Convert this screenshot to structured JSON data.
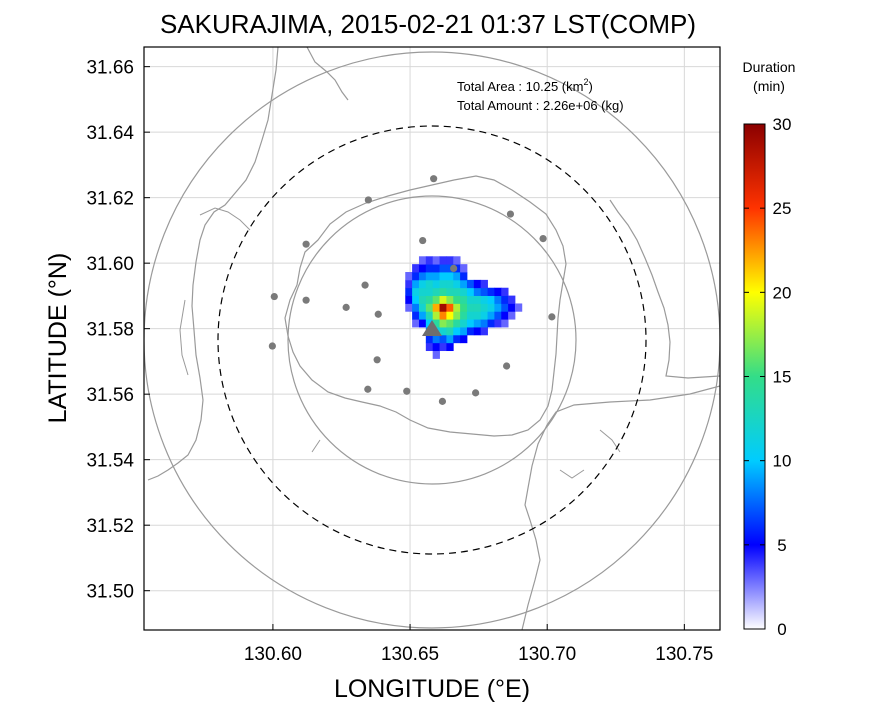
{
  "chart_data": {
    "type": "heatmap",
    "title": "SAKURAJIMA, 2015-02-21 01:37 LST(COMP)",
    "xlabel": "LONGITUDE (°E)",
    "ylabel": "LATITUDE (°N)",
    "xlim": [
      130.553,
      130.763
    ],
    "ylim": [
      31.488,
      31.666
    ],
    "xticks": [
      "130.60",
      "130.65",
      "130.70",
      "130.75"
    ],
    "xtick_values": [
      130.6,
      130.65,
      130.7,
      130.75
    ],
    "yticks": [
      "31.50",
      "31.52",
      "31.54",
      "31.56",
      "31.58",
      "31.60",
      "31.62",
      "31.64",
      "31.66"
    ],
    "ytick_values": [
      31.5,
      31.52,
      31.54,
      31.56,
      31.58,
      31.6,
      31.62,
      31.64,
      31.66
    ],
    "grid": true,
    "annotation": {
      "area_label": "Total Area   : 10.25 (km",
      "area_sup": "2",
      "area_close": ")",
      "amount_label": "Total Amount : 2.26e+06 (kg)"
    },
    "colorbar": {
      "title_line1": "Duration",
      "title_line2": "(min)",
      "ticks": [
        "0",
        "5",
        "10",
        "15",
        "20",
        "25",
        "30"
      ],
      "tick_values": [
        0,
        5,
        10,
        15,
        20,
        25,
        30
      ],
      "range": [
        0,
        30
      ]
    },
    "center": {
      "lon": 130.658,
      "lat": 31.578
    },
    "range_circles": [
      {
        "radius_km": 5,
        "style": "solid"
      },
      {
        "radius_km": 7.5,
        "style": "dashed"
      },
      {
        "radius_km": 10,
        "style": "solid"
      }
    ],
    "radar_sites": [
      [
        130.6586,
        31.6258
      ],
      [
        130.6348,
        31.6193
      ],
      [
        130.6866,
        31.615
      ],
      [
        130.6985,
        31.6075
      ],
      [
        130.6121,
        31.6058
      ],
      [
        130.6546,
        31.6069
      ],
      [
        130.6659,
        31.5984
      ],
      [
        130.6005,
        31.5898
      ],
      [
        130.6121,
        31.5887
      ],
      [
        130.6336,
        31.5933
      ],
      [
        130.6267,
        31.5865
      ],
      [
        130.6384,
        31.5844
      ],
      [
        130.7017,
        31.5836
      ],
      [
        130.5998,
        31.5747
      ],
      [
        130.638,
        31.5705
      ],
      [
        130.6852,
        31.5686
      ],
      [
        130.6346,
        31.5615
      ],
      [
        130.6488,
        31.5609
      ],
      [
        130.6739,
        31.5604
      ],
      [
        130.6618,
        31.5578
      ]
    ],
    "duration_cells": [
      [
        130.6495,
        31.5865,
        3
      ],
      [
        130.6495,
        31.5889,
        5
      ],
      [
        130.6495,
        31.5913,
        6
      ],
      [
        130.6495,
        31.5937,
        4
      ],
      [
        130.6495,
        31.5961,
        3
      ],
      [
        130.652,
        31.5817,
        3
      ],
      [
        130.652,
        31.5841,
        6
      ],
      [
        130.652,
        31.5865,
        8
      ],
      [
        130.652,
        31.5889,
        10
      ],
      [
        130.652,
        31.5913,
        11
      ],
      [
        130.652,
        31.5937,
        9
      ],
      [
        130.652,
        31.5961,
        6
      ],
      [
        130.652,
        31.5985,
        4
      ],
      [
        130.6545,
        31.5817,
        5
      ],
      [
        130.6545,
        31.5841,
        9
      ],
      [
        130.6545,
        31.5865,
        12
      ],
      [
        130.6545,
        31.5889,
        13
      ],
      [
        130.6545,
        31.5913,
        12
      ],
      [
        130.6545,
        31.5937,
        11
      ],
      [
        130.6545,
        31.5961,
        8
      ],
      [
        130.6545,
        31.5985,
        5
      ],
      [
        130.6545,
        31.6009,
        3
      ],
      [
        130.657,
        31.5745,
        4
      ],
      [
        130.657,
        31.5769,
        6
      ],
      [
        130.657,
        31.5793,
        8
      ],
      [
        130.657,
        31.5817,
        10
      ],
      [
        130.657,
        31.5841,
        13
      ],
      [
        130.657,
        31.5865,
        16
      ],
      [
        130.657,
        31.5889,
        14
      ],
      [
        130.657,
        31.5913,
        12
      ],
      [
        130.657,
        31.5937,
        12
      ],
      [
        130.657,
        31.5961,
        9
      ],
      [
        130.657,
        31.5985,
        6
      ],
      [
        130.657,
        31.6009,
        4
      ],
      [
        130.6595,
        31.5721,
        3
      ],
      [
        130.6595,
        31.5745,
        5
      ],
      [
        130.6595,
        31.5769,
        8
      ],
      [
        130.6595,
        31.5793,
        11
      ],
      [
        130.6595,
        31.5817,
        14
      ],
      [
        130.6595,
        31.5841,
        18
      ],
      [
        130.6595,
        31.5865,
        22
      ],
      [
        130.6595,
        31.5889,
        16
      ],
      [
        130.6595,
        31.5913,
        13
      ],
      [
        130.6595,
        31.5937,
        11
      ],
      [
        130.6595,
        31.5961,
        9
      ],
      [
        130.6595,
        31.5985,
        6
      ],
      [
        130.6595,
        31.6009,
        3
      ],
      [
        130.662,
        31.5745,
        4
      ],
      [
        130.662,
        31.5769,
        7
      ],
      [
        130.662,
        31.5793,
        12
      ],
      [
        130.662,
        31.5817,
        17
      ],
      [
        130.662,
        31.5841,
        23
      ],
      [
        130.662,
        31.5865,
        29
      ],
      [
        130.662,
        31.5889,
        19
      ],
      [
        130.662,
        31.5913,
        14
      ],
      [
        130.662,
        31.5937,
        12
      ],
      [
        130.662,
        31.5961,
        10
      ],
      [
        130.662,
        31.5985,
        7
      ],
      [
        130.662,
        31.6009,
        4
      ],
      [
        130.6645,
        31.5745,
        5
      ],
      [
        130.6645,
        31.5769,
        9
      ],
      [
        130.6645,
        31.5793,
        13
      ],
      [
        130.6645,
        31.5817,
        16
      ],
      [
        130.6645,
        31.5841,
        20
      ],
      [
        130.6645,
        31.5865,
        24
      ],
      [
        130.6645,
        31.5889,
        17
      ],
      [
        130.6645,
        31.5913,
        13
      ],
      [
        130.6645,
        31.5937,
        12
      ],
      [
        130.6645,
        31.5961,
        10
      ],
      [
        130.6645,
        31.5985,
        7
      ],
      [
        130.6645,
        31.6009,
        4
      ],
      [
        130.667,
        31.5769,
        6
      ],
      [
        130.667,
        31.5793,
        10
      ],
      [
        130.667,
        31.5817,
        14
      ],
      [
        130.667,
        31.5841,
        17
      ],
      [
        130.667,
        31.5865,
        18
      ],
      [
        130.667,
        31.5889,
        15
      ],
      [
        130.667,
        31.5913,
        13
      ],
      [
        130.667,
        31.5937,
        11
      ],
      [
        130.667,
        31.5961,
        9
      ],
      [
        130.667,
        31.5985,
        6
      ],
      [
        130.667,
        31.6009,
        3
      ],
      [
        130.6695,
        31.5769,
        5
      ],
      [
        130.6695,
        31.5793,
        9
      ],
      [
        130.6695,
        31.5817,
        12
      ],
      [
        130.6695,
        31.5841,
        14
      ],
      [
        130.6695,
        31.5865,
        15
      ],
      [
        130.6695,
        31.5889,
        14
      ],
      [
        130.6695,
        31.5913,
        12
      ],
      [
        130.6695,
        31.5937,
        9
      ],
      [
        130.6695,
        31.5961,
        6
      ],
      [
        130.6695,
        31.5985,
        3
      ],
      [
        130.672,
        31.5793,
        6
      ],
      [
        130.672,
        31.5817,
        10
      ],
      [
        130.672,
        31.5841,
        12
      ],
      [
        130.672,
        31.5865,
        13
      ],
      [
        130.672,
        31.5889,
        12
      ],
      [
        130.672,
        31.5913,
        10
      ],
      [
        130.672,
        31.5937,
        7
      ],
      [
        130.6745,
        31.5793,
        5
      ],
      [
        130.6745,
        31.5817,
        9
      ],
      [
        130.6745,
        31.5841,
        12
      ],
      [
        130.6745,
        31.5865,
        13
      ],
      [
        130.6745,
        31.5889,
        12
      ],
      [
        130.6745,
        31.5913,
        8
      ],
      [
        130.6745,
        31.5937,
        5
      ],
      [
        130.677,
        31.5793,
        4
      ],
      [
        130.677,
        31.5817,
        8
      ],
      [
        130.677,
        31.5841,
        11
      ],
      [
        130.677,
        31.5865,
        12
      ],
      [
        130.677,
        31.5889,
        11
      ],
      [
        130.677,
        31.5913,
        7
      ],
      [
        130.677,
        31.5937,
        4
      ],
      [
        130.6795,
        31.5817,
        6
      ],
      [
        130.6795,
        31.5841,
        9
      ],
      [
        130.6795,
        31.5865,
        11
      ],
      [
        130.6795,
        31.5889,
        10
      ],
      [
        130.6795,
        31.5913,
        6
      ],
      [
        130.682,
        31.5817,
        4
      ],
      [
        130.682,
        31.5841,
        7
      ],
      [
        130.682,
        31.5865,
        9
      ],
      [
        130.682,
        31.5889,
        8
      ],
      [
        130.682,
        31.5913,
        5
      ],
      [
        130.6845,
        31.5817,
        3
      ],
      [
        130.6845,
        31.5841,
        5
      ],
      [
        130.6845,
        31.5865,
        7
      ],
      [
        130.6845,
        31.5889,
        6
      ],
      [
        130.6845,
        31.5913,
        4
      ],
      [
        130.687,
        31.5841,
        3
      ],
      [
        130.687,
        31.5865,
        5
      ],
      [
        130.687,
        31.5889,
        4
      ],
      [
        130.6895,
        31.5865,
        3
      ]
    ]
  }
}
